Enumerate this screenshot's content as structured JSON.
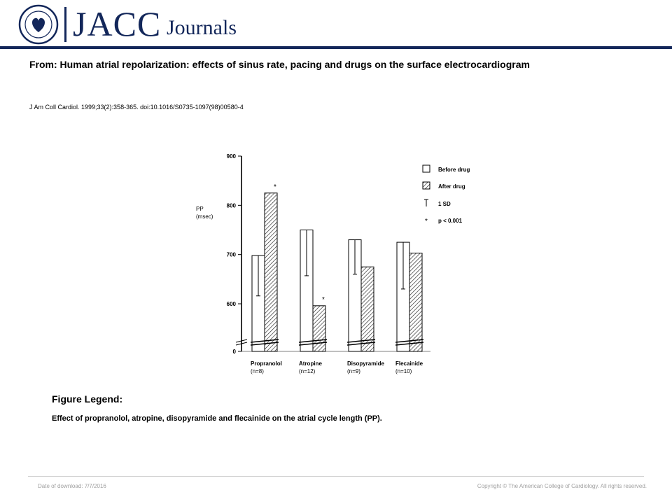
{
  "header": {
    "brand": "JACC",
    "brand_suffix": "Journals",
    "colors": {
      "brand": "#13275a",
      "rule": "#13275a"
    }
  },
  "article": {
    "title": "From: Human atrial repolarization: effects of sinus rate, pacing and drugs on the surface electrocardiogram",
    "citation": "J Am Coll Cardiol. 1999;33(2):358-365. doi:10.1016/S0735-1097(98)00580-4"
  },
  "figure_legend": {
    "heading": "Figure Legend:",
    "text": "Effect of propranolol, atropine, disopyramide and flecainide on the atrial cycle length (PP)."
  },
  "footer": {
    "date": "Date of download:  7/7/2016",
    "copyright": "Copyright © The American College of Cardiology. All rights reserved."
  },
  "chart_data": {
    "type": "bar",
    "ylabel": "PP",
    "ylabel_unit": "(msec)",
    "yticks": [
      "0",
      "600",
      "700",
      "800",
      "900"
    ],
    "ylim": [
      600,
      900
    ],
    "axis_break": true,
    "categories": [
      "Propranolol",
      "Atropine",
      "Disopyramide",
      "Flecainide"
    ],
    "category_n": [
      "(n=8)",
      "(n=12)",
      "(n=9)",
      "(n=10)"
    ],
    "series": [
      {
        "name": "Before drug",
        "values": [
          698,
          750,
          730,
          725
        ],
        "sd": [
          82,
          93,
          70,
          95
        ],
        "pattern": "open"
      },
      {
        "name": "After drug",
        "values": [
          825,
          596,
          675,
          703
        ],
        "sd": [
          0,
          0,
          0,
          0
        ],
        "pattern": "hatched"
      }
    ],
    "significance_marker": "*",
    "significant": [
      true,
      true,
      false,
      false
    ],
    "legend": [
      "Before drug",
      "After drug",
      "1 SD",
      "p < 0.001"
    ],
    "legend_position": "top-right"
  }
}
